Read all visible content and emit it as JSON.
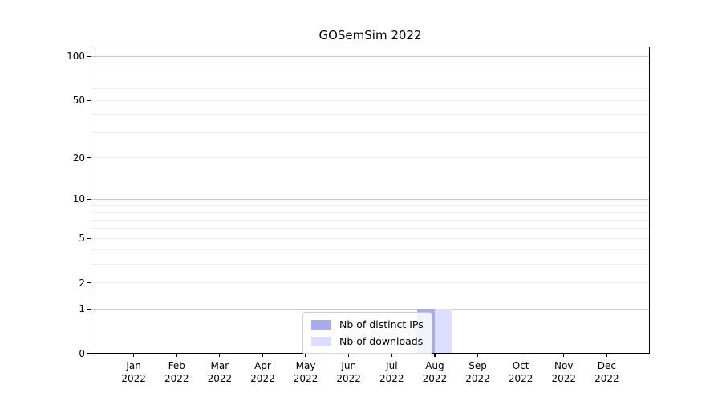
{
  "chart_data": {
    "type": "bar",
    "title": "GOSemSim 2022",
    "categories": [
      "Jan",
      "Feb",
      "Mar",
      "Apr",
      "May",
      "Jun",
      "Jul",
      "Aug",
      "Sep",
      "Oct",
      "Nov",
      "Dec"
    ],
    "category_year": "2022",
    "series": [
      {
        "name": "Nb of distinct IPs",
        "color": "#aaaaee",
        "values": [
          0,
          0,
          0,
          0,
          0,
          0,
          0,
          1,
          0,
          0,
          0,
          0
        ]
      },
      {
        "name": "Nb of downloads",
        "color": "#ddddff",
        "values": [
          0,
          0,
          0,
          0,
          0,
          0,
          0,
          1,
          0,
          0,
          0,
          0
        ]
      }
    ],
    "y_axis": {
      "scale": "log1p",
      "ylim": [
        0,
        100
      ],
      "tick_values": [
        0,
        1,
        2,
        5,
        10,
        20,
        50,
        100
      ],
      "tick_labels": [
        "0",
        "1",
        "2",
        "5",
        "10",
        "20",
        "50",
        "100"
      ],
      "major_grid_values": [
        1,
        10,
        100
      ],
      "minor_grid_values": [
        2,
        3,
        4,
        5,
        6,
        7,
        8,
        9,
        20,
        30,
        40,
        50,
        60,
        70,
        80,
        90
      ]
    },
    "xlabel": "",
    "ylabel": "",
    "grid": true,
    "legend": {
      "position": "bottom-center",
      "entries": [
        "Nb of distinct IPs",
        "Nb of downloads"
      ]
    },
    "colors": {
      "background": "#ffffff",
      "spine": "#000000",
      "grid_major": "#c6c6c6",
      "grid_minor": "#ededed",
      "legend_border": "#cccccc"
    }
  }
}
